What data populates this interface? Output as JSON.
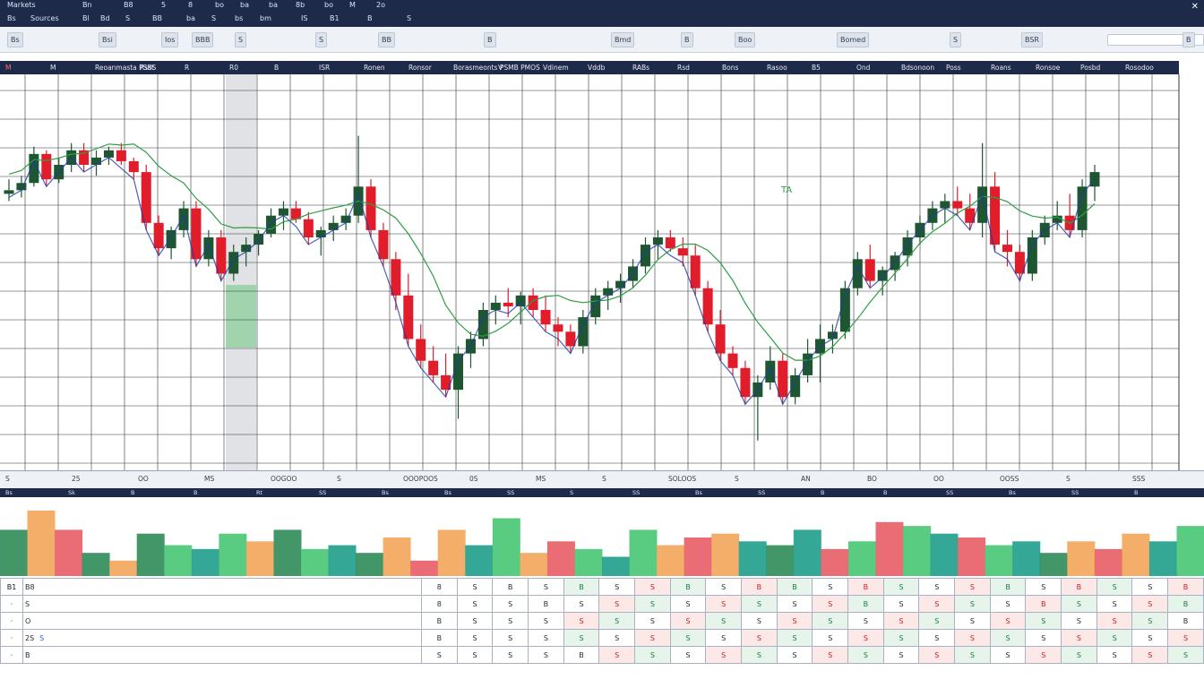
{
  "menubar": {
    "row1": [
      "Markets",
      "Bn",
      "B8",
      "5",
      "8",
      "bo",
      "ba",
      "ba",
      "8b",
      "bo",
      "M",
      "2o"
    ],
    "row2": [
      "Bs",
      "Sources",
      "Bl",
      "Bd",
      "S",
      "BB",
      "ba",
      "S",
      "bs",
      "bm",
      "IS",
      "B1",
      "B",
      "S"
    ]
  },
  "toolbar": {
    "items": [
      "Bs",
      "Bsi",
      "Ios",
      "BBB",
      "S",
      "S",
      "BB",
      "B",
      "Bmd",
      "B",
      "Boo",
      "Bomed",
      "S",
      "BSR",
      "B"
    ],
    "search_placeholder": ""
  },
  "chart_header": {
    "items": [
      "M",
      "M",
      "Reoanmasta PSBS",
      "Rsst",
      "R",
      "R0",
      "B",
      "ISR",
      "Ronen",
      "Ronsor",
      "Borasmeonts PSMB PMOS",
      "V",
      "Vdinem",
      "Vddb",
      "RABs",
      "Rsd",
      "Bons",
      "Rasoo",
      "B5",
      "Ond",
      "Bdsonoon",
      "Poss",
      "Roans",
      "Ronsoe",
      "Posbd",
      "Rosodoo"
    ],
    "overlay_label": "TA"
  },
  "colors": {
    "up": "#1e5631",
    "down": "#e11d2b",
    "line_blue": "#1e3aa8",
    "line_green": "#2f9e44",
    "header_bg": "#1e2a4a"
  },
  "chart_data": {
    "type": "candlestick",
    "title": "",
    "ylim": [
      0,
      100
    ],
    "candles": [
      [
        72,
        76,
        70,
        73
      ],
      [
        73,
        77,
        71,
        75
      ],
      [
        75,
        85,
        74,
        83
      ],
      [
        83,
        84,
        74,
        76
      ],
      [
        76,
        82,
        75,
        80
      ],
      [
        80,
        86,
        78,
        84
      ],
      [
        84,
        86,
        78,
        80
      ],
      [
        80,
        84,
        77,
        82
      ],
      [
        82,
        85,
        80,
        84
      ],
      [
        84,
        86,
        80,
        81
      ],
      [
        81,
        82,
        76,
        78
      ],
      [
        78,
        80,
        62,
        64
      ],
      [
        64,
        66,
        55,
        57
      ],
      [
        57,
        63,
        54,
        62
      ],
      [
        62,
        70,
        60,
        68
      ],
      [
        68,
        70,
        52,
        54
      ],
      [
        54,
        62,
        52,
        60
      ],
      [
        60,
        62,
        48,
        50
      ],
      [
        50,
        58,
        48,
        56
      ],
      [
        56,
        60,
        52,
        58
      ],
      [
        58,
        62,
        55,
        61
      ],
      [
        61,
        68,
        60,
        66
      ],
      [
        66,
        70,
        62,
        68
      ],
      [
        68,
        70,
        64,
        65
      ],
      [
        65,
        67,
        58,
        60
      ],
      [
        60,
        63,
        55,
        62
      ],
      [
        62,
        66,
        59,
        64
      ],
      [
        64,
        68,
        62,
        66
      ],
      [
        66,
        88,
        64,
        74
      ],
      [
        74,
        76,
        60,
        62
      ],
      [
        62,
        64,
        52,
        54
      ],
      [
        54,
        56,
        40,
        44
      ],
      [
        44,
        50,
        30,
        32
      ],
      [
        32,
        36,
        24,
        26
      ],
      [
        26,
        30,
        20,
        22
      ],
      [
        22,
        28,
        16,
        18
      ],
      [
        18,
        30,
        10,
        28
      ],
      [
        28,
        34,
        24,
        32
      ],
      [
        32,
        42,
        30,
        40
      ],
      [
        40,
        44,
        36,
        42
      ],
      [
        42,
        46,
        38,
        41
      ],
      [
        41,
        45,
        36,
        44
      ],
      [
        44,
        46,
        38,
        40
      ],
      [
        40,
        44,
        34,
        36
      ],
      [
        36,
        38,
        30,
        34
      ],
      [
        34,
        36,
        28,
        30
      ],
      [
        30,
        40,
        28,
        38
      ],
      [
        38,
        46,
        36,
        44
      ],
      [
        44,
        48,
        40,
        46
      ],
      [
        46,
        50,
        42,
        48
      ],
      [
        48,
        54,
        46,
        52
      ],
      [
        52,
        60,
        50,
        58
      ],
      [
        58,
        62,
        54,
        60
      ],
      [
        60,
        62,
        56,
        57
      ],
      [
        57,
        60,
        52,
        55
      ],
      [
        55,
        58,
        44,
        46
      ],
      [
        46,
        48,
        34,
        36
      ],
      [
        36,
        40,
        26,
        28
      ],
      [
        28,
        30,
        22,
        24
      ],
      [
        24,
        26,
        14,
        16
      ],
      [
        16,
        22,
        4,
        20
      ],
      [
        20,
        30,
        18,
        26
      ],
      [
        26,
        28,
        14,
        16
      ],
      [
        16,
        24,
        14,
        22
      ],
      [
        22,
        32,
        20,
        28
      ],
      [
        28,
        36,
        20,
        32
      ],
      [
        32,
        36,
        28,
        34
      ],
      [
        34,
        48,
        32,
        46
      ],
      [
        46,
        56,
        44,
        54
      ],
      [
        54,
        58,
        46,
        48
      ],
      [
        48,
        52,
        44,
        51
      ],
      [
        51,
        56,
        48,
        55
      ],
      [
        55,
        62,
        52,
        60
      ],
      [
        60,
        66,
        58,
        64
      ],
      [
        64,
        70,
        62,
        68
      ],
      [
        68,
        72,
        64,
        70
      ],
      [
        70,
        74,
        66,
        68
      ],
      [
        68,
        72,
        62,
        64
      ],
      [
        64,
        86,
        60,
        74
      ],
      [
        74,
        78,
        56,
        58
      ],
      [
        58,
        62,
        52,
        56
      ],
      [
        56,
        58,
        48,
        50
      ],
      [
        50,
        62,
        48,
        60
      ],
      [
        60,
        66,
        58,
        64
      ],
      [
        64,
        70,
        62,
        66
      ],
      [
        66,
        72,
        60,
        62
      ],
      [
        62,
        76,
        60,
        74
      ],
      [
        74,
        80,
        70,
        78
      ]
    ]
  },
  "volume_data": {
    "values": [
      60,
      85,
      60,
      30,
      20,
      55,
      40,
      35,
      55,
      45,
      60,
      35,
      40,
      30,
      50,
      20,
      60,
      40,
      75,
      30,
      45,
      35,
      25,
      60,
      40,
      50,
      55,
      45,
      40,
      60,
      35,
      45,
      70,
      65,
      55,
      50,
      40,
      45,
      30,
      45,
      35,
      55,
      45,
      65
    ]
  },
  "axis_strip": {
    "items": [
      "S",
      "25",
      "OO",
      "MS",
      "OOGOO",
      "S",
      "OOOPOOS",
      "0S",
      "MS",
      "S",
      "SOLOOS",
      "S",
      "AN",
      "BO",
      "OO",
      "OOSS",
      "S",
      "SSS"
    ]
  },
  "volume_header": {
    "items": [
      "Bs",
      "Sk",
      "B",
      "B",
      "Rt",
      "SS",
      "Bs",
      "Bs",
      "SS",
      "S",
      "SS",
      "Bs",
      "SS",
      "B",
      "B",
      "SS",
      "Bs",
      "SS",
      "B"
    ]
  },
  "table": {
    "rows": [
      {
        "sym": "B1",
        "name": "B8",
        "tag": "",
        "c": [
          "8 ",
          "S",
          "B",
          "S",
          "B",
          "S",
          "S",
          "B",
          "S",
          "B",
          "B",
          "S",
          "B",
          "S",
          "S",
          "S",
          "B",
          "S",
          "B",
          "S",
          "S",
          "B"
        ]
      },
      {
        "sym": "·",
        "name": "S",
        "tag": "",
        "c": [
          "8",
          "S",
          "S",
          "B",
          "S",
          "S",
          "S",
          "S",
          "S",
          "S",
          "S",
          "S",
          "B",
          "S",
          "S",
          "S",
          "S",
          "B",
          "S",
          "S",
          "S",
          "B"
        ]
      },
      {
        "sym": "·",
        "name": "O",
        "tag": "",
        "c": [
          "B",
          "S",
          "S",
          "S",
          "S",
          "S",
          "S",
          "S",
          "S",
          "S",
          "S",
          "S",
          "S",
          "S",
          "S",
          "S",
          "S",
          "S",
          "S",
          "S",
          "S",
          "B"
        ]
      },
      {
        "sym": "·",
        "name": "2S",
        "tag": "S",
        "c": [
          "B",
          "S",
          "S",
          "S",
          "S",
          "S",
          "S",
          "S",
          "S",
          "S",
          "S",
          "S",
          "S",
          "S",
          "S",
          "S",
          "S",
          "S",
          "S",
          "S",
          "S",
          "S"
        ]
      },
      {
        "sym": "·",
        "name": "B",
        "tag": "",
        "c": [
          "S",
          "S",
          "S",
          "S",
          "B",
          "S",
          "S",
          "S",
          "S",
          "S",
          "S",
          "S",
          "S",
          "S",
          "S",
          "S",
          "S",
          "S",
          "S",
          "S",
          "S",
          "S"
        ]
      }
    ]
  }
}
